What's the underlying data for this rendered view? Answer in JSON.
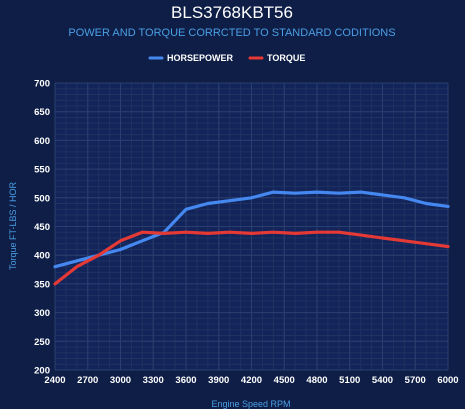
{
  "chart_data": {
    "type": "line",
    "title": "BLS3768KBT56",
    "subtitle": "POWER AND TORQUE CORRCTED TO STANDARD CODITIONS",
    "xlabel": "Engine Speed RPM",
    "ylabel": "Torque FT-LBS / HOR",
    "xlim": [
      2400,
      6000
    ],
    "ylim": [
      200,
      700
    ],
    "xticks": [
      2400,
      2700,
      3000,
      3300,
      3600,
      3900,
      4200,
      4500,
      4800,
      5100,
      5400,
      5700,
      6000
    ],
    "yticks": [
      200,
      250,
      300,
      350,
      400,
      450,
      500,
      550,
      600,
      650,
      700
    ],
    "grid": true,
    "legend_position": "top",
    "x": [
      2400,
      2600,
      2800,
      3000,
      3200,
      3400,
      3600,
      3800,
      4000,
      4200,
      4400,
      4600,
      4800,
      5000,
      5200,
      5400,
      5600,
      5800,
      6000
    ],
    "series": [
      {
        "name": "HORSEPOWER",
        "color": "#4488f0",
        "values": [
          380,
          390,
          400,
          410,
          425,
          440,
          480,
          490,
          495,
          500,
          510,
          508,
          510,
          508,
          510,
          505,
          500,
          490,
          485
        ]
      },
      {
        "name": "TORQUE",
        "color": "#e53935",
        "values": [
          350,
          380,
          400,
          425,
          440,
          438,
          440,
          438,
          440,
          438,
          440,
          438,
          440,
          440,
          435,
          430,
          425,
          420,
          415
        ]
      }
    ]
  }
}
